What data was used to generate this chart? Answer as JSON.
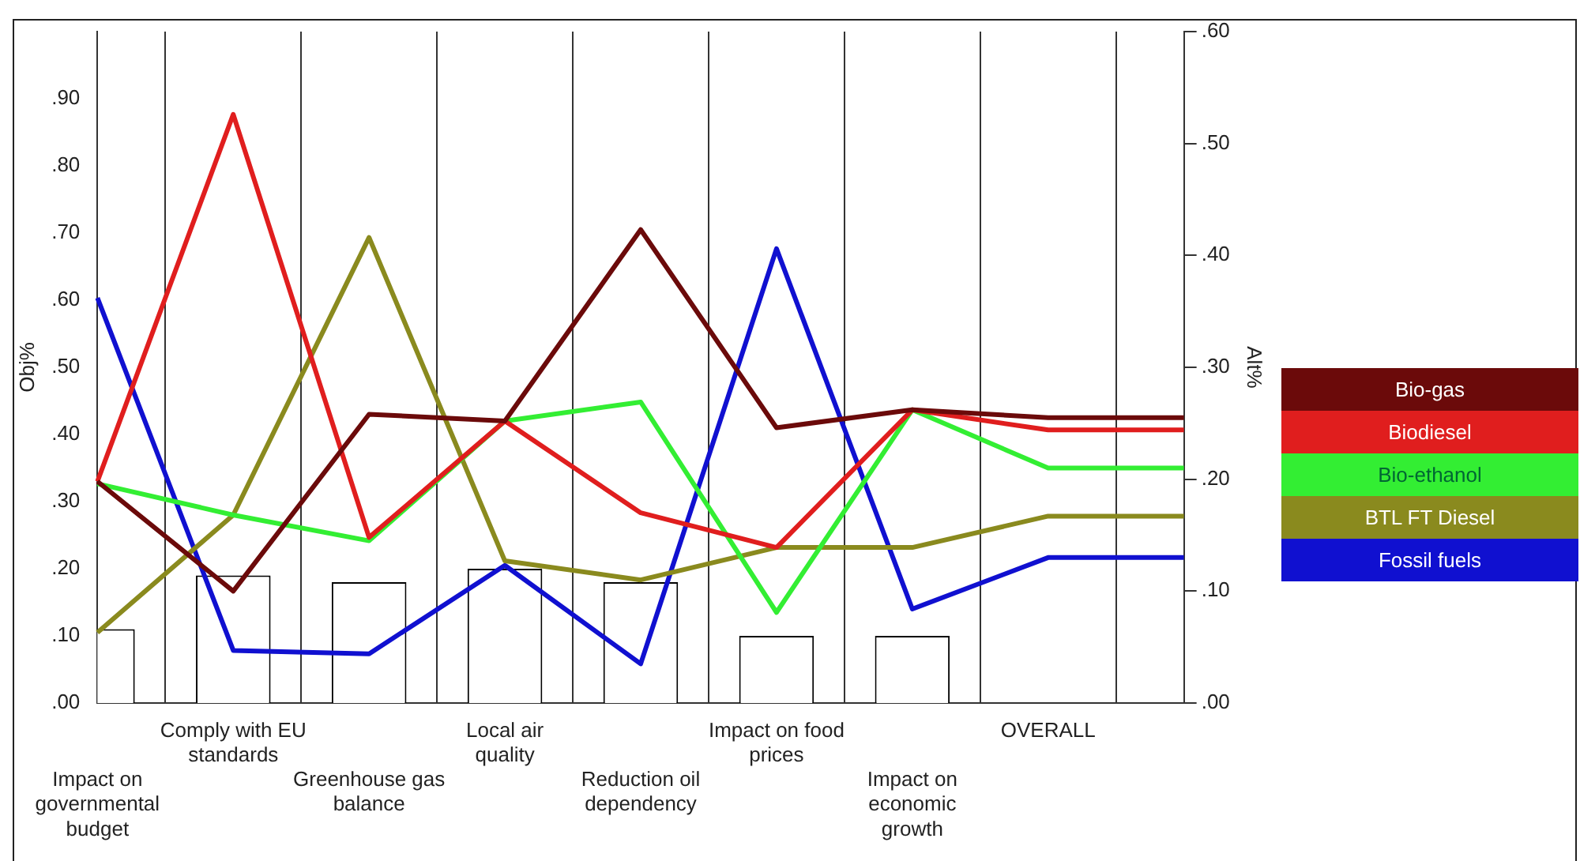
{
  "chart_data": {
    "type": "line",
    "ylabel": "Obj%",
    "y2label": "Alt%",
    "categories": [
      "Impact on governmental budget",
      "Comply with EU standards",
      "Greenhouse gas balance",
      "Local air quality",
      "Reduction oil dependency",
      "Impact on food prices",
      "Impact on economic growth",
      "OVERALL",
      null
    ],
    "series": [
      {
        "type": "bar",
        "axis": "y",
        "color": "#ffffff",
        "values": [
          0.11,
          0.19,
          0.18,
          0.2,
          0.18,
          0.1,
          0.1,
          null,
          null
        ]
      },
      {
        "name": "Bio-gas",
        "axis": "y2",
        "color": "#6b0a0a",
        "values": [
          0.198,
          0.1,
          0.258,
          0.252,
          0.423,
          0.246,
          0.262,
          0.255,
          0.255
        ]
      },
      {
        "name": "Biodiesel",
        "axis": "y2",
        "color": "#e01e1e",
        "values": [
          0.198,
          0.526,
          0.148,
          0.252,
          0.17,
          0.139,
          0.262,
          0.244,
          0.244
        ]
      },
      {
        "name": "Bio-ethanol",
        "axis": "y2",
        "color": "#33ee33",
        "values": [
          0.196,
          0.168,
          0.145,
          0.252,
          0.269,
          0.081,
          0.262,
          0.21,
          0.21
        ]
      },
      {
        "name": "BTL FT Diesel",
        "axis": "y2",
        "color": "#8a8a1e",
        "values": [
          0.063,
          0.168,
          0.416,
          0.127,
          0.11,
          0.139,
          0.139,
          0.167,
          0.167
        ]
      },
      {
        "name": "Fossil fuels",
        "axis": "y2",
        "color": "#1010d0",
        "values": [
          0.362,
          0.047,
          0.044,
          0.123,
          0.035,
          0.406,
          0.084,
          0.13,
          0.13
        ]
      }
    ],
    "ylim": [
      0,
      1.0
    ],
    "yticks": [
      {
        "value": 0,
        "label": ".00"
      },
      {
        "value": 0.1,
        "label": ".10"
      },
      {
        "value": 0.2,
        "label": ".20"
      },
      {
        "value": 0.3,
        "label": ".30"
      },
      {
        "value": 0.4,
        "label": ".40"
      },
      {
        "value": 0.5,
        "label": ".50"
      },
      {
        "value": 0.6,
        "label": ".60"
      },
      {
        "value": 0.7,
        "label": ".70"
      },
      {
        "value": 0.8,
        "label": ".80"
      },
      {
        "value": 0.9,
        "label": ".90"
      }
    ],
    "y2lim": [
      0,
      0.6
    ],
    "y2ticks": [
      {
        "value": 0,
        "label": ".00"
      },
      {
        "value": 0.1,
        "label": ".10"
      },
      {
        "value": 0.2,
        "label": ".20"
      },
      {
        "value": 0.3,
        "label": ".30"
      },
      {
        "value": 0.4,
        "label": ".40"
      },
      {
        "value": 0.5,
        "label": ".50"
      },
      {
        "value": 0.6,
        "label": ".60"
      }
    ],
    "grid": "x",
    "legend": "right",
    "line_style": "solid",
    "marker": "none"
  }
}
